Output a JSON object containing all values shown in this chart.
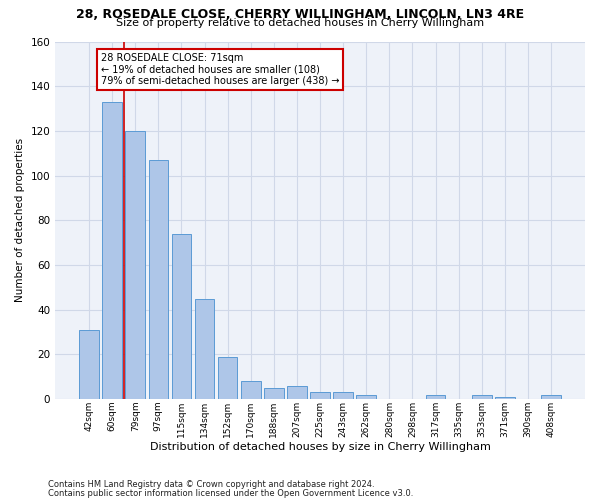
{
  "title1": "28, ROSEDALE CLOSE, CHERRY WILLINGHAM, LINCOLN, LN3 4RE",
  "title2": "Size of property relative to detached houses in Cherry Willingham",
  "xlabel": "Distribution of detached houses by size in Cherry Willingham",
  "ylabel": "Number of detached properties",
  "footnote1": "Contains HM Land Registry data © Crown copyright and database right 2024.",
  "footnote2": "Contains public sector information licensed under the Open Government Licence v3.0.",
  "bar_labels": [
    "42sqm",
    "60sqm",
    "79sqm",
    "97sqm",
    "115sqm",
    "134sqm",
    "152sqm",
    "170sqm",
    "188sqm",
    "207sqm",
    "225sqm",
    "243sqm",
    "262sqm",
    "280sqm",
    "298sqm",
    "317sqm",
    "335sqm",
    "353sqm",
    "371sqm",
    "390sqm",
    "408sqm"
  ],
  "bar_values": [
    31,
    133,
    120,
    107,
    74,
    45,
    19,
    8,
    5,
    6,
    3,
    3,
    2,
    0,
    0,
    2,
    0,
    2,
    1,
    0,
    2
  ],
  "bar_color": "#aec6e8",
  "bar_edge_color": "#5b9bd5",
  "grid_color": "#d0d8e8",
  "annotation_line1": "28 ROSEDALE CLOSE: 71sqm",
  "annotation_line2": "← 19% of detached houses are smaller (108)",
  "annotation_line3": "79% of semi-detached houses are larger (438) →",
  "red_line_x": 1.5,
  "red_color": "#cc0000",
  "ylim": [
    0,
    160
  ],
  "yticks": [
    0,
    20,
    40,
    60,
    80,
    100,
    120,
    140,
    160
  ],
  "background_color": "#eef2f9"
}
